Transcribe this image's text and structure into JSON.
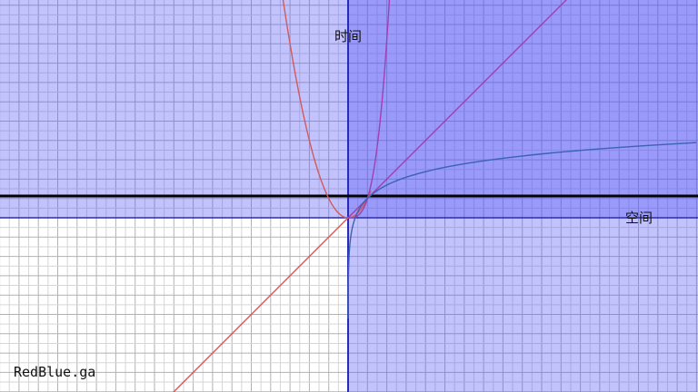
{
  "labels": {
    "time_axis": "时间",
    "space_axis": "空间",
    "watermark": "RedBlue.ga"
  },
  "colors": {
    "background": "#ffffff",
    "region_fill": "#4b4bf5",
    "grid_minor": "#d6d6d6",
    "grid_major": "#b2b2b2",
    "axis": "#2a2ab8",
    "horizontal_line": "#000000",
    "red_curve": "#d25a5a",
    "blue_curve": "#3a63b0",
    "purple_curve": "#a040b0"
  },
  "icons": {
    "watermark": "text-logo"
  }
}
